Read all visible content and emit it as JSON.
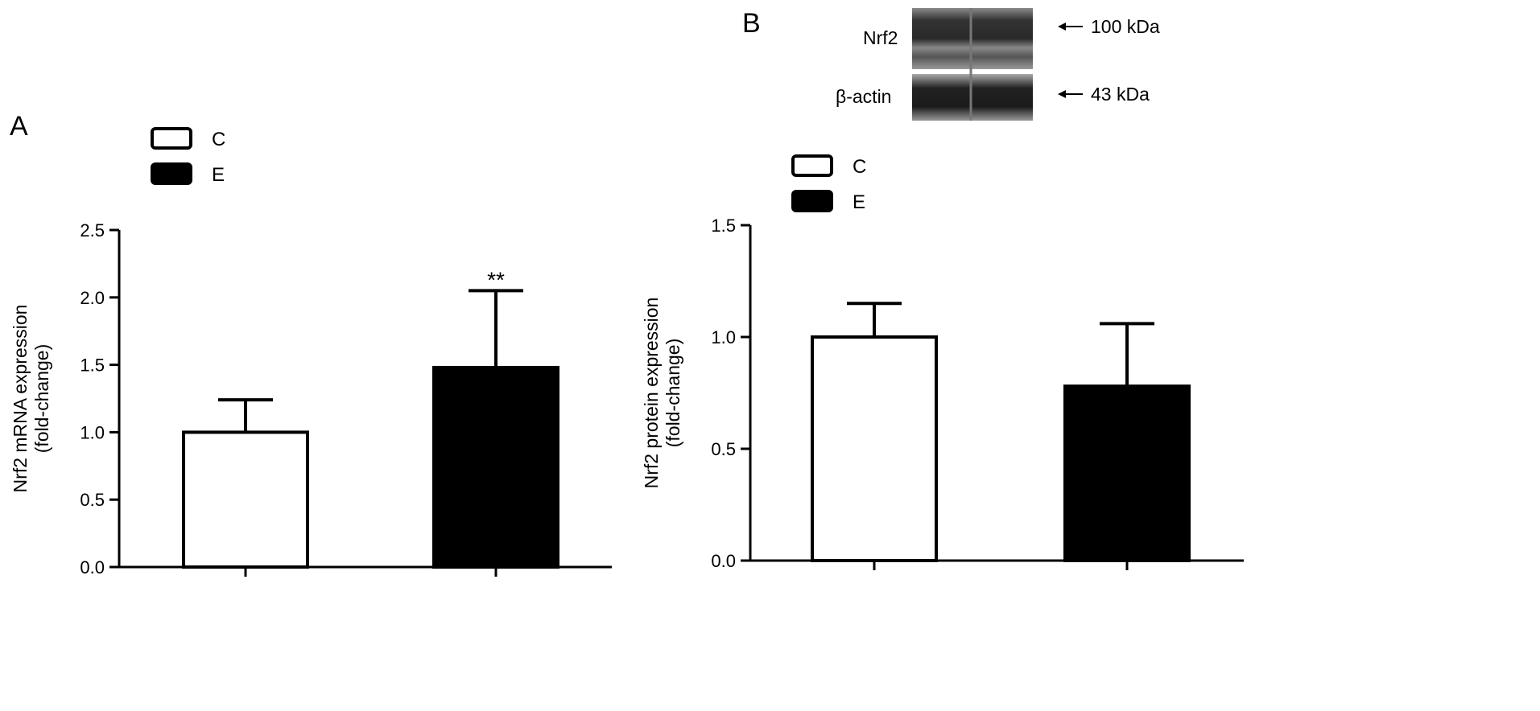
{
  "chart_data": [
    {
      "type": "bar",
      "panel_label": "A",
      "categories": [
        "C",
        "E"
      ],
      "values": [
        1.0,
        1.48
      ],
      "error_upper": [
        1.24,
        2.05
      ],
      "annotations": [
        "",
        "**"
      ],
      "ylabel": "Nrf2 mRNA expression",
      "ylabel2": "(fold-change)",
      "ylim": [
        0,
        2.5
      ],
      "yticks": [
        "0.0",
        "0.5",
        "1.0",
        "1.5",
        "2.0",
        "2.5"
      ],
      "legend": [
        {
          "name": "C",
          "fill": "#ffffff"
        },
        {
          "name": "E",
          "fill": "#000000"
        }
      ],
      "legend_position": "top-left"
    },
    {
      "type": "bar",
      "panel_label": "B",
      "categories": [
        "C",
        "E"
      ],
      "values": [
        1.0,
        0.78
      ],
      "error_upper": [
        1.15,
        1.06
      ],
      "annotations": [
        "",
        ""
      ],
      "ylabel": "Nrf2 protein expression",
      "ylabel2": "(fold-change)",
      "ylim": [
        0,
        1.5
      ],
      "yticks": [
        "0.0",
        "0.5",
        "1.0",
        "1.5"
      ],
      "legend": [
        {
          "name": "C",
          "fill": "#ffffff"
        },
        {
          "name": "E",
          "fill": "#000000"
        }
      ],
      "legend_position": "top-left"
    }
  ],
  "blot": {
    "rows": [
      {
        "label": "Nrf2",
        "marker": "100 kDa"
      },
      {
        "label": "β-actin",
        "marker": "43 kDa"
      }
    ]
  }
}
